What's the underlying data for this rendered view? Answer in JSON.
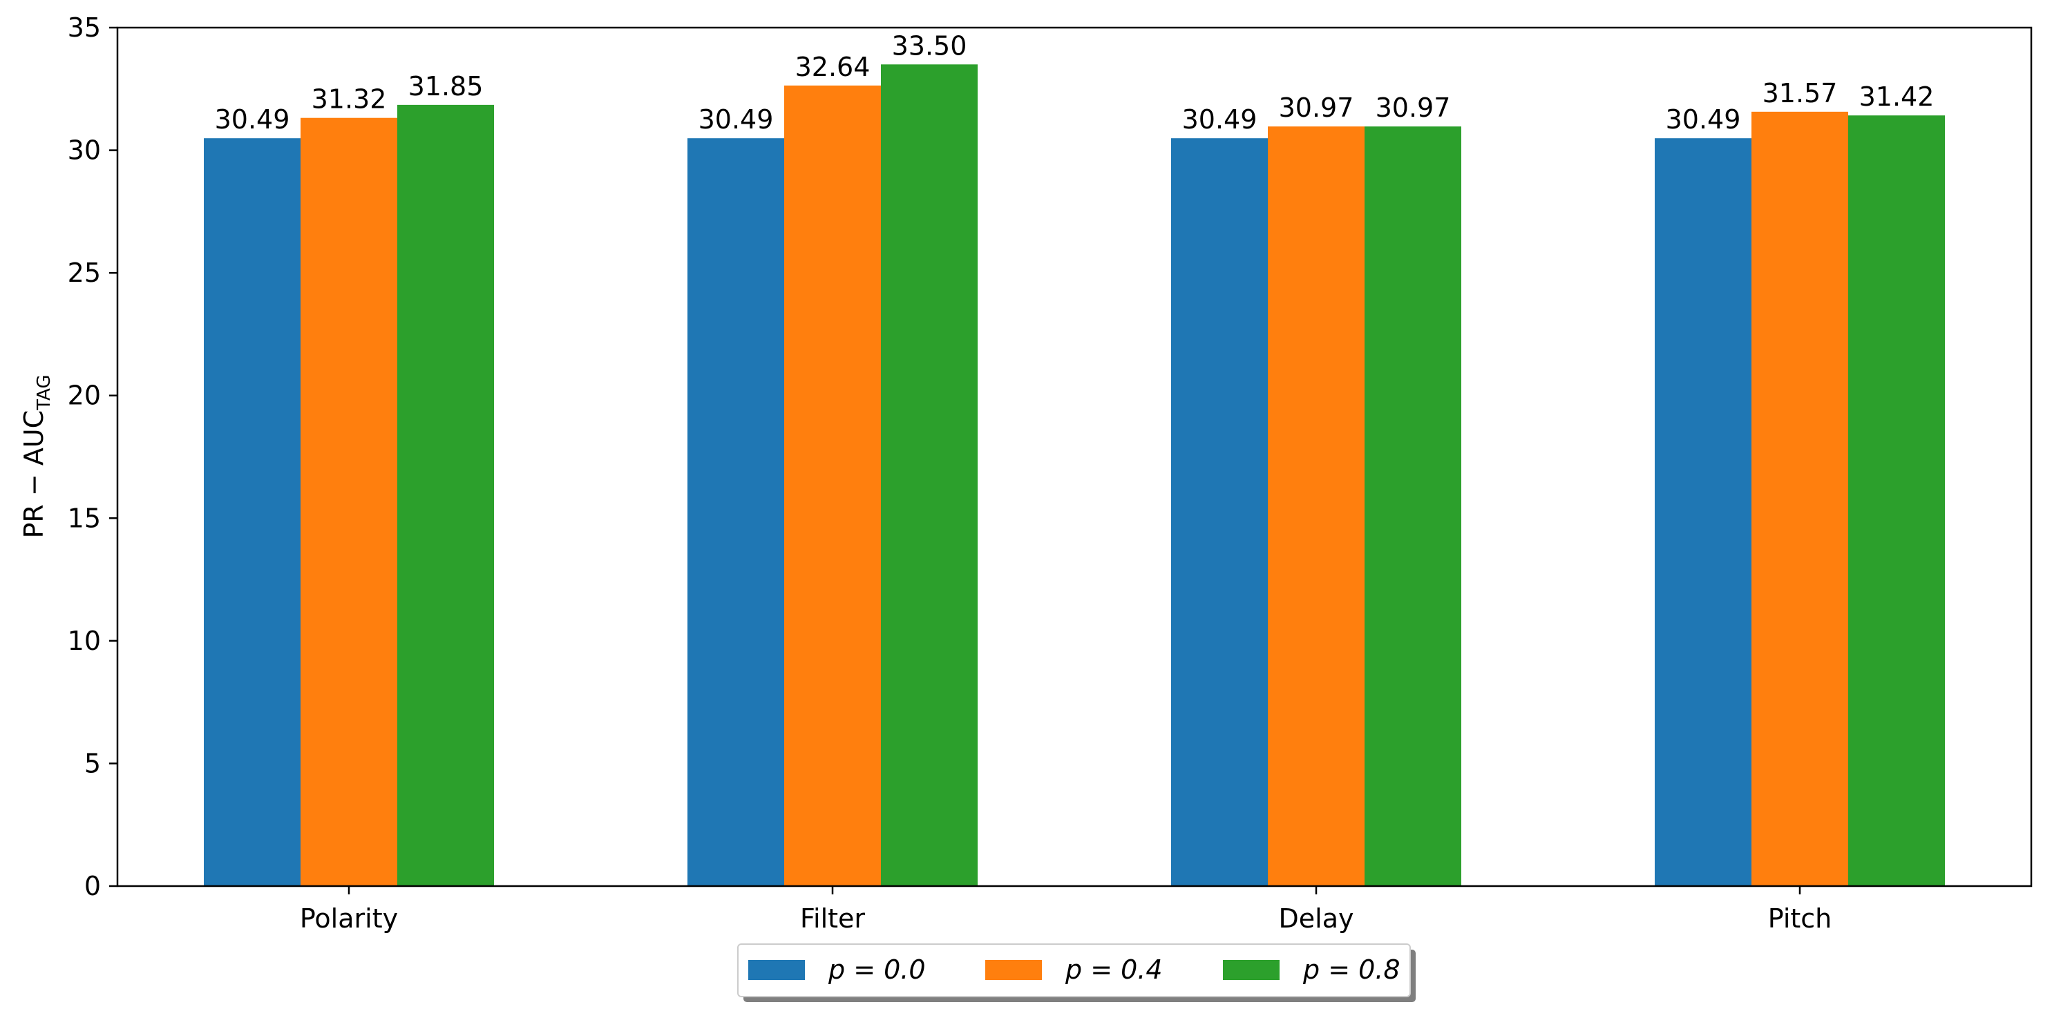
{
  "chart_data": {
    "type": "bar",
    "categories": [
      "Polarity",
      "Filter",
      "Delay",
      "Pitch"
    ],
    "series": [
      {
        "name": "p = 0.0",
        "values": [
          30.49,
          30.49,
          30.49,
          30.49
        ],
        "labels": [
          "30.49",
          "30.49",
          "30.49",
          "30.49"
        ],
        "color": "#1f77b4"
      },
      {
        "name": "p = 0.4",
        "values": [
          31.32,
          32.64,
          30.97,
          31.57
        ],
        "labels": [
          "31.32",
          "32.64",
          "30.97",
          "31.57"
        ],
        "color": "#ff7f0e"
      },
      {
        "name": "p = 0.8",
        "values": [
          31.85,
          33.5,
          30.97,
          31.42
        ],
        "labels": [
          "31.85",
          "33.50",
          "30.97",
          "31.42"
        ],
        "color": "#2ca02c"
      }
    ],
    "title": "",
    "xlabel": "",
    "ylabel": "PR − AUC",
    "ylabel_subscript": "TAG",
    "ylim": [
      0,
      35
    ],
    "yticks": [
      0,
      5,
      10,
      15,
      20,
      25,
      30,
      35
    ],
    "ytick_labels": [
      "0",
      "5",
      "10",
      "15",
      "20",
      "25",
      "30",
      "35"
    ],
    "grid": false,
    "legend_placement": "bottom-center, below axes"
  }
}
